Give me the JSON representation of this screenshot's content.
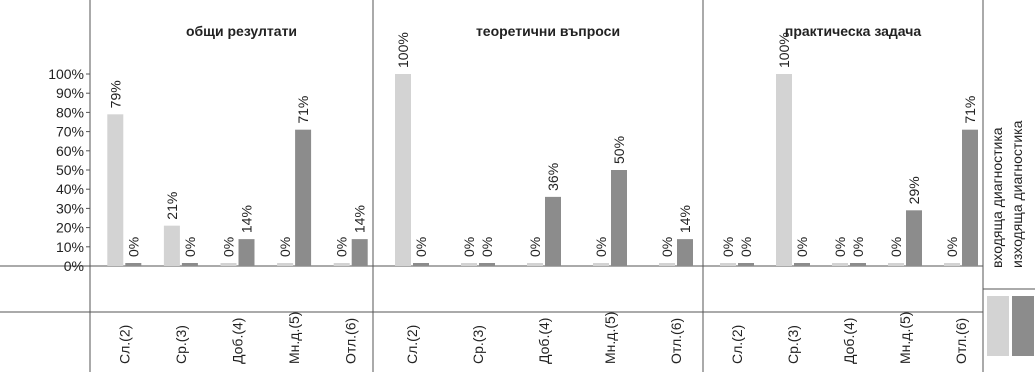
{
  "chart_data": {
    "type": "bar",
    "categories": [
      "Сл.(2)",
      "Ср.(3)",
      "Доб.(4)",
      "Мн.д.(5)",
      "Отл.(6)"
    ],
    "ylim": [
      0,
      100
    ],
    "y_ticks": [
      "0%",
      "10%",
      "20%",
      "30%",
      "40%",
      "50%",
      "60%",
      "70%",
      "80%",
      "90%",
      "100%"
    ],
    "grid": false,
    "legend_position": "right",
    "series_names": [
      "входяща диагностика",
      "изходяща диагностика"
    ],
    "colors": {
      "incoming": "#d3d3d3",
      "outgoing": "#8c8c8c"
    },
    "panels": [
      {
        "title": "общи резултати",
        "incoming": [
          79,
          21,
          0,
          0,
          0
        ],
        "outgoing": [
          0,
          0,
          14,
          71,
          14
        ],
        "incoming_labels": [
          "79%",
          "21%",
          "0%",
          "0%",
          "0%"
        ],
        "outgoing_labels": [
          "0%",
          "0%",
          "14%",
          "71%",
          "14%"
        ]
      },
      {
        "title": "теоретични въпроси",
        "incoming": [
          100,
          0,
          0,
          0,
          0
        ],
        "outgoing": [
          0,
          0,
          36,
          50,
          14
        ],
        "incoming_labels": [
          "100%",
          "0%",
          "0%",
          "0%",
          "0%"
        ],
        "outgoing_labels": [
          "0%",
          "0%",
          "36%",
          "50%",
          "14%"
        ]
      },
      {
        "title": "практическа задача",
        "incoming": [
          0,
          100,
          0,
          0,
          0
        ],
        "outgoing": [
          0,
          0,
          0,
          29,
          71
        ],
        "incoming_labels": [
          "0%",
          "100%",
          "0%",
          "0%",
          "0%"
        ],
        "outgoing_labels": [
          "0%",
          "0%",
          "0%",
          "29%",
          "71%"
        ]
      }
    ]
  }
}
